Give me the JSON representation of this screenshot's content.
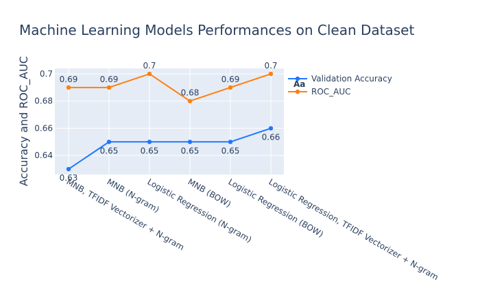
{
  "chart_data": {
    "type": "line",
    "title": "Machine Learning Models Performances on Clean Dataset",
    "xlabel": "",
    "ylabel": "Accuracy and ROC_AUC",
    "categories": [
      "MNB, TFIDF Vectorizer + N-gram",
      "MNB (N-gram)",
      "Logistic Regression (N-gram)",
      "MNB (BOW)",
      "Logistic Regression (BOW)",
      "Logistic Regression, TFIDF Vectorizer + N-gram"
    ],
    "series": [
      {
        "name": "Validation Accuracy",
        "color": "#1f77ff",
        "values": [
          0.63,
          0.65,
          0.65,
          0.65,
          0.65,
          0.66
        ],
        "labels": [
          "0.63",
          "0.65",
          "0.65",
          "0.65",
          "0.65",
          "0.66"
        ],
        "label_position": "below"
      },
      {
        "name": "ROC_AUC",
        "color": "#ff7f0e",
        "values": [
          0.69,
          0.69,
          0.7,
          0.68,
          0.69,
          0.7
        ],
        "labels": [
          "0.69",
          "0.69",
          "0.7",
          "0.68",
          "0.69",
          "0.7"
        ],
        "label_position": "above"
      }
    ],
    "ylim": [
      0.626,
      0.704
    ],
    "yticks": [
      0.64,
      0.66,
      0.68,
      0.7
    ],
    "ytick_labels": [
      "0.64",
      "0.66",
      "0.68",
      "0.7"
    ],
    "grid": true,
    "legend_placement": "top-right",
    "plot_background": "#e5ecf6",
    "legend_badge": "Aa"
  }
}
